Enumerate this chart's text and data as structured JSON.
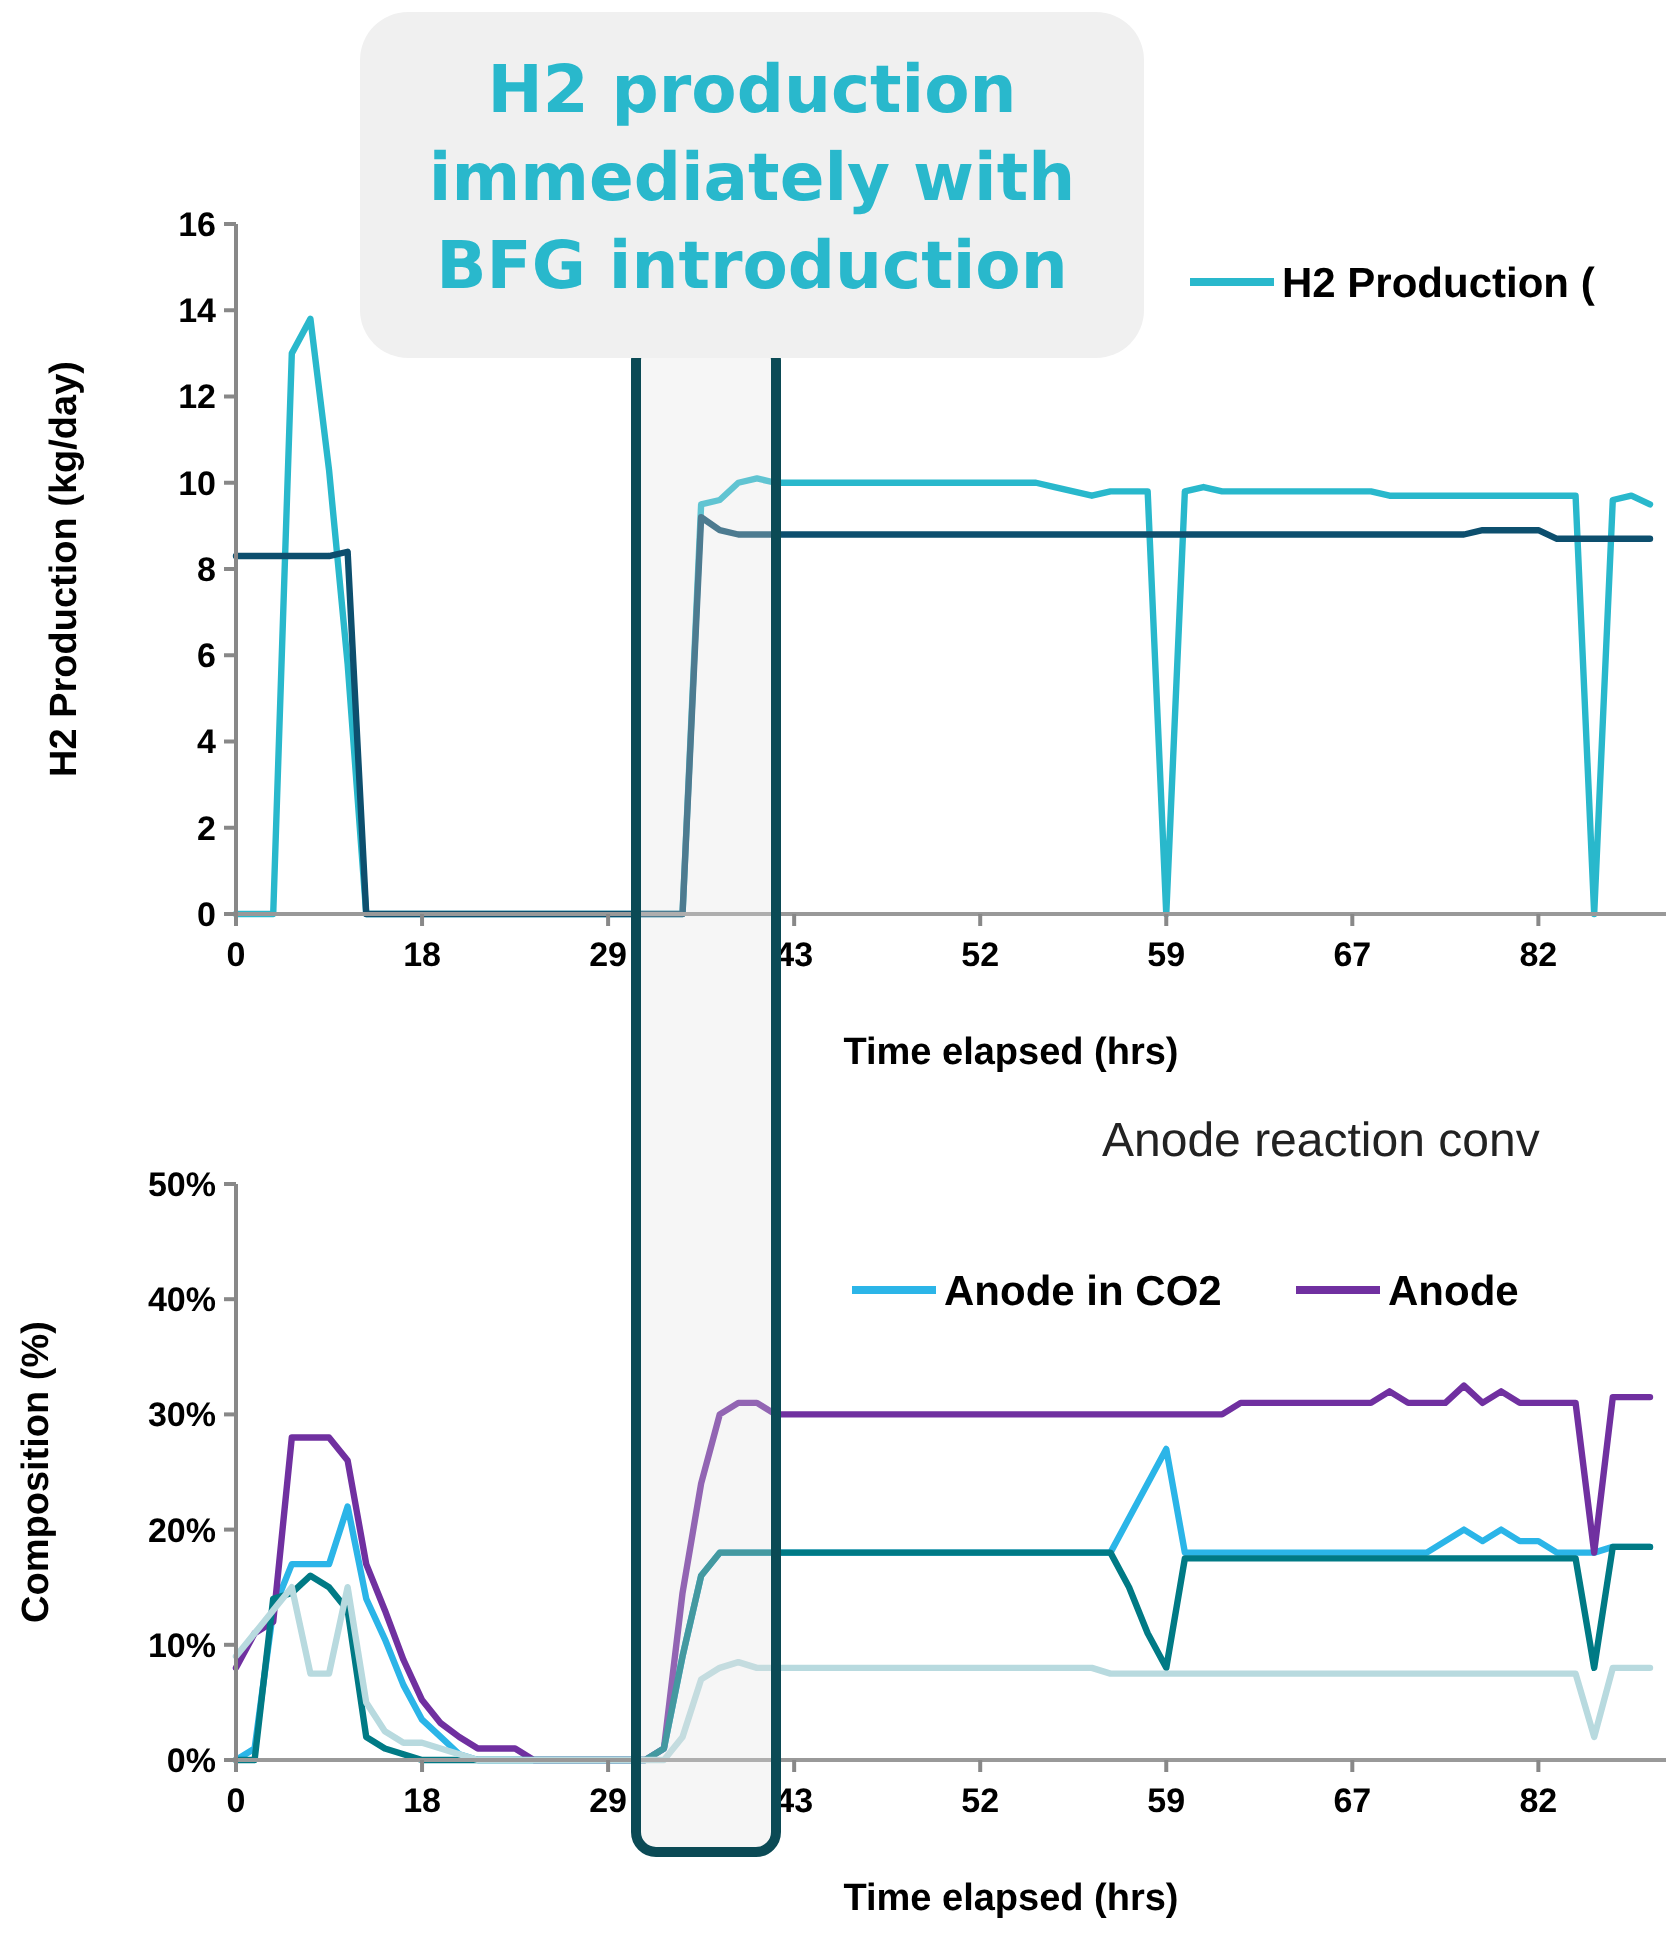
{
  "chart_data": [
    {
      "type": "line",
      "xlabel": "Time elapsed (hrs)",
      "ylabel": "H2 Production (kg/day)",
      "annotations": [
        "H2 production immediately with BFG introduction"
      ],
      "categories": [
        "0",
        null,
        null,
        null,
        null,
        null,
        null,
        null,
        null,
        null,
        "18",
        null,
        null,
        null,
        null,
        null,
        null,
        null,
        null,
        null,
        "29",
        null,
        null,
        null,
        null,
        null,
        null,
        null,
        null,
        null,
        "43",
        null,
        null,
        null,
        null,
        null,
        null,
        null,
        null,
        null,
        "52",
        null,
        null,
        null,
        null,
        null,
        null,
        null,
        null,
        null,
        "59",
        null,
        null,
        null,
        null,
        null,
        null,
        null,
        null,
        null,
        "67",
        null,
        null,
        null,
        null,
        null,
        null,
        null,
        null,
        null,
        "82",
        null,
        null,
        null,
        null,
        null,
        null
      ],
      "ylim": [
        0,
        16
      ],
      "yticks": [
        0,
        2,
        4,
        6,
        8,
        10,
        12,
        14,
        16
      ],
      "legend": "top right",
      "series": [
        {
          "name": "H2 Production (",
          "color": "#29b8cc",
          "values": [
            0,
            0,
            0,
            13,
            13.8,
            10.3,
            5.8,
            0,
            0,
            0,
            0,
            0,
            0,
            0,
            0,
            0,
            0,
            0,
            0,
            0,
            0,
            0,
            0,
            0,
            0,
            9.5,
            9.6,
            10,
            10.1,
            10,
            10,
            10,
            10,
            10,
            10,
            10,
            10,
            10,
            10,
            10,
            10,
            10,
            10,
            10,
            9.9,
            9.8,
            9.7,
            9.8,
            9.8,
            9.8,
            0,
            9.8,
            9.9,
            9.8,
            9.8,
            9.8,
            9.8,
            9.8,
            9.8,
            9.8,
            9.8,
            9.8,
            9.7,
            9.7,
            9.7,
            9.7,
            9.7,
            9.7,
            9.7,
            9.7,
            9.7,
            9.7,
            9.7,
            0,
            9.6,
            9.7,
            9.5
          ]
        },
        {
          "color": "#0d4f6e",
          "values": [
            8.3,
            8.3,
            8.3,
            8.3,
            8.3,
            8.3,
            8.4,
            0,
            0,
            0,
            0,
            0,
            0,
            0,
            0,
            0,
            0,
            0,
            0,
            0,
            0,
            0,
            0,
            0,
            0,
            9.2,
            8.9,
            8.8,
            8.8,
            8.8,
            8.8,
            8.8,
            8.8,
            8.8,
            8.8,
            8.8,
            8.8,
            8.8,
            8.8,
            8.8,
            8.8,
            8.8,
            8.8,
            8.8,
            8.8,
            8.8,
            8.8,
            8.8,
            8.8,
            8.8,
            8.8,
            8.8,
            8.8,
            8.8,
            8.8,
            8.8,
            8.8,
            8.8,
            8.8,
            8.8,
            8.8,
            8.8,
            8.8,
            8.8,
            8.8,
            8.8,
            8.8,
            8.9,
            8.9,
            8.9,
            8.9,
            8.7,
            8.7,
            8.7,
            8.7,
            8.7,
            8.7
          ]
        }
      ]
    },
    {
      "type": "line",
      "title": "Anode reaction conv",
      "xlabel": "Time elapsed (hrs)",
      "ylabel": "Composition (%)",
      "categories": [
        "0",
        null,
        null,
        null,
        null,
        null,
        null,
        null,
        null,
        null,
        "18",
        null,
        null,
        null,
        null,
        null,
        null,
        null,
        null,
        null,
        "29",
        null,
        null,
        null,
        null,
        null,
        null,
        null,
        null,
        null,
        "43",
        null,
        null,
        null,
        null,
        null,
        null,
        null,
        null,
        null,
        "52",
        null,
        null,
        null,
        null,
        null,
        null,
        null,
        null,
        null,
        "59",
        null,
        null,
        null,
        null,
        null,
        null,
        null,
        null,
        null,
        "67",
        null,
        null,
        null,
        null,
        null,
        null,
        null,
        null,
        null,
        "82",
        null,
        null,
        null,
        null,
        null,
        null
      ],
      "ylim": [
        0,
        50
      ],
      "yticks": [
        {
          "value": 0,
          "label": "0%"
        },
        {
          "value": 10,
          "label": "10%"
        },
        {
          "value": 20,
          "label": "20%"
        },
        {
          "value": 30,
          "label": "30%"
        },
        {
          "value": 40,
          "label": "40%"
        },
        {
          "value": 50,
          "label": "50%"
        }
      ],
      "legend": "top right",
      "series": [
        {
          "name": "Anode in CO2",
          "color": "#2bb5e8",
          "values": [
            0,
            1,
            13,
            17,
            17,
            17,
            22,
            14,
            10.5,
            6.5,
            3.5,
            2,
            0.5,
            0,
            0,
            0,
            0,
            0,
            0,
            0,
            0,
            0,
            0,
            1,
            9,
            16,
            18,
            18,
            18,
            18,
            18,
            18,
            18,
            18,
            18,
            18,
            18,
            18,
            18,
            18,
            18,
            18,
            18,
            18,
            18,
            18,
            18,
            18,
            21,
            24,
            27,
            18,
            18,
            18,
            18,
            18,
            18,
            18,
            18,
            18,
            18,
            18,
            18,
            18,
            18,
            19,
            20,
            19,
            20,
            19,
            19,
            18,
            18,
            18,
            18.5,
            18.5,
            18.5
          ]
        },
        {
          "name": "Anode",
          "color": "#7030a0",
          "values": [
            8,
            11,
            12,
            28,
            28,
            28,
            26,
            17,
            13,
            8.7,
            5.2,
            3.2,
            2,
            1,
            1,
            1,
            0,
            0,
            0,
            0,
            0,
            0,
            0,
            1,
            14.5,
            24,
            30,
            31,
            31,
            30,
            30,
            30,
            30,
            30,
            30,
            30,
            30,
            30,
            30,
            30,
            30,
            30,
            30,
            30,
            30,
            30,
            30,
            30,
            30,
            30,
            30,
            30,
            30,
            30,
            31,
            31,
            31,
            31,
            31,
            31,
            31,
            31,
            32,
            31,
            31,
            31,
            32.5,
            31,
            32,
            31,
            31,
            31,
            31,
            18,
            31.5,
            31.5,
            31.5
          ]
        },
        {
          "color": "#007a85",
          "values": [
            0,
            0,
            14,
            14.5,
            16,
            15,
            13,
            2,
            1,
            0.5,
            0,
            0,
            0,
            0,
            0,
            0,
            0,
            0,
            0,
            0,
            0,
            0,
            0,
            1,
            9,
            16,
            18,
            18,
            18,
            18,
            18,
            18,
            18,
            18,
            18,
            18,
            18,
            18,
            18,
            18,
            18,
            18,
            18,
            18,
            18,
            18,
            18,
            18,
            15,
            11,
            8,
            17.5,
            17.5,
            17.5,
            17.5,
            17.5,
            17.5,
            17.5,
            17.5,
            17.5,
            17.5,
            17.5,
            17.5,
            17.5,
            17.5,
            17.5,
            17.5,
            17.5,
            17.5,
            17.5,
            17.5,
            17.5,
            17.5,
            8,
            18.5,
            18.5,
            18.5
          ]
        },
        {
          "color": "#b8dadf",
          "values": [
            9,
            11,
            13,
            15,
            7.5,
            7.5,
            15,
            5,
            2.5,
            1.5,
            1.5,
            1,
            0.5,
            0,
            0,
            0,
            0,
            0,
            0,
            0,
            0,
            0,
            0,
            0,
            2,
            7,
            8,
            8.5,
            8,
            8,
            8,
            8,
            8,
            8,
            8,
            8,
            8,
            8,
            8,
            8,
            8,
            8,
            8,
            8,
            8,
            8,
            8,
            7.5,
            7.5,
            7.5,
            7.5,
            7.5,
            7.5,
            7.5,
            7.5,
            7.5,
            7.5,
            7.5,
            7.5,
            7.5,
            7.5,
            7.5,
            7.5,
            7.5,
            7.5,
            7.5,
            7.5,
            7.5,
            7.5,
            7.5,
            7.5,
            7.5,
            7.5,
            2,
            8,
            8,
            8
          ]
        }
      ]
    }
  ]
}
